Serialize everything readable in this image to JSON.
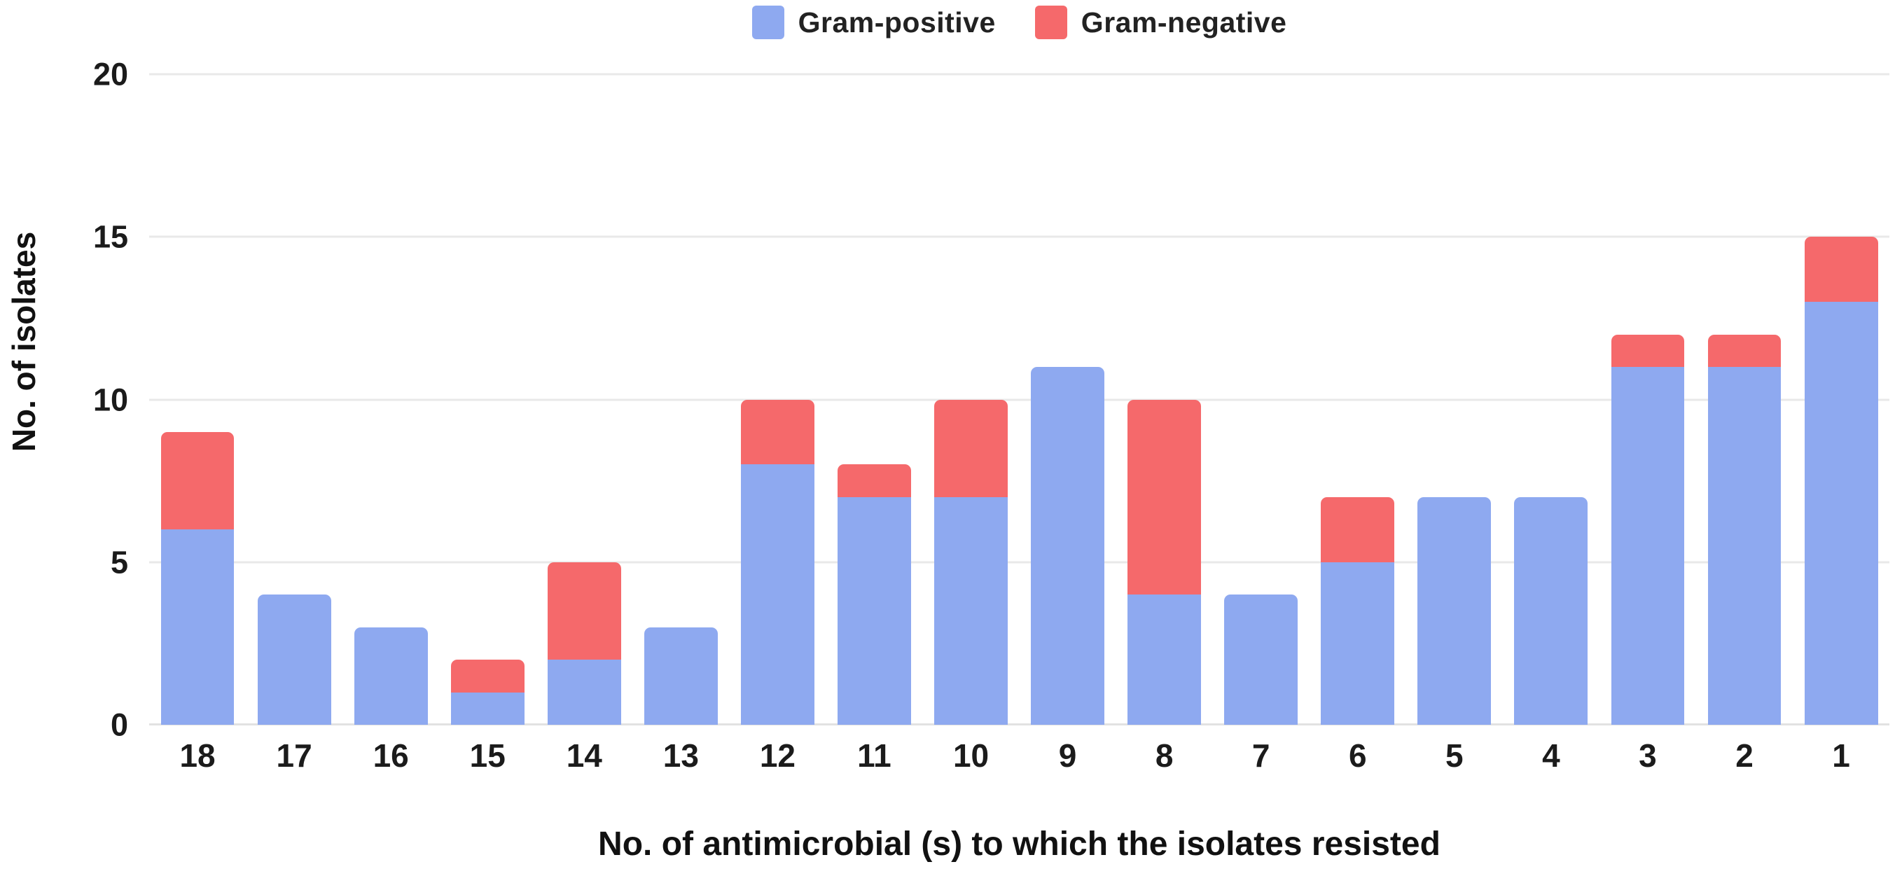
{
  "legend": {
    "items": [
      {
        "label": "Gram-positive",
        "color": "#8EA9F0"
      },
      {
        "label": "Gram-negative",
        "color": "#F5696B"
      }
    ]
  },
  "y_axis": {
    "title": "No. of isolates",
    "ticks": [
      0,
      5,
      10,
      15,
      20
    ]
  },
  "x_axis": {
    "title": "No. of antimicrobial (s) to which the isolates resisted"
  },
  "colors": {
    "background": "#FFFFFF",
    "gridline": "#E9E9E9",
    "baseline": "#E2E2E2",
    "text": "#1B1B1B"
  },
  "chart_data": {
    "type": "bar",
    "stacked": true,
    "categories": [
      "18",
      "17",
      "16",
      "15",
      "14",
      "13",
      "12",
      "11",
      "10",
      "9",
      "8",
      "7",
      "6",
      "5",
      "4",
      "3",
      "2",
      "1"
    ],
    "series": [
      {
        "name": "Gram-positive",
        "color": "#8EA9F0",
        "values": [
          6,
          4,
          3,
          1,
          2,
          3,
          8,
          7,
          7,
          11,
          4,
          4,
          5,
          7,
          7,
          11,
          11,
          13
        ]
      },
      {
        "name": "Gram-negative",
        "color": "#F5696B",
        "values": [
          3,
          0,
          0,
          1,
          3,
          0,
          2,
          1,
          3,
          0,
          6,
          0,
          2,
          0,
          0,
          1,
          1,
          2
        ]
      }
    ],
    "totals": [
      9,
      4,
      3,
      2,
      5,
      3,
      10,
      8,
      10,
      11,
      10,
      4,
      7,
      7,
      7,
      12,
      12,
      15
    ],
    "title": "",
    "xlabel": "No. of antimicrobial (s) to which the isolates resisted",
    "ylabel": "No. of isolates",
    "ylim": [
      0,
      20
    ],
    "gridlines": [
      5,
      10,
      15,
      20
    ],
    "grid": true,
    "legend_position": "top-center"
  }
}
